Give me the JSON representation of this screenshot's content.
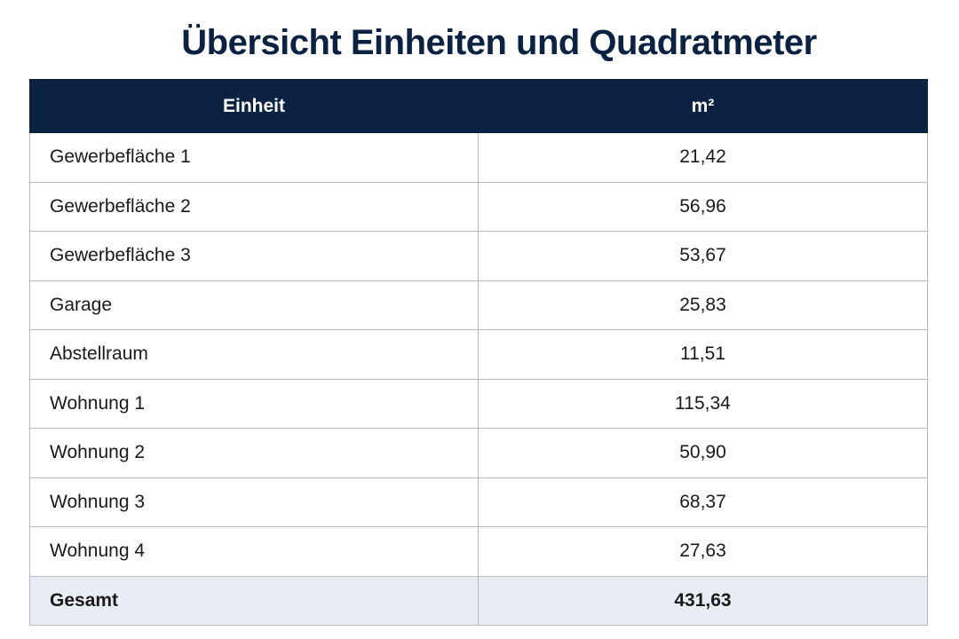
{
  "title": "Übersicht Einheiten und Quadratmeter",
  "table": {
    "headers": [
      "Einheit",
      "m²"
    ],
    "rows": [
      {
        "unit": "Gewerbefläche 1",
        "area": "21,42"
      },
      {
        "unit": "Gewerbefläche 2",
        "area": "56,96"
      },
      {
        "unit": "Gewerbefläche 3",
        "area": "53,67"
      },
      {
        "unit": "Garage",
        "area": "25,83"
      },
      {
        "unit": "Abstellraum",
        "area": "11,51"
      },
      {
        "unit": "Wohnung 1",
        "area": "115,34"
      },
      {
        "unit": "Wohnung 2",
        "area": "50,90"
      },
      {
        "unit": "Wohnung 3",
        "area": "68,37"
      },
      {
        "unit": "Wohnung 4",
        "area": "27,63"
      }
    ],
    "total": {
      "unit": "Gesamt",
      "area": "431,63"
    }
  },
  "colors": {
    "header_bg": "#0b2242",
    "title": "#0b2242",
    "total_bg": "#e9ecf2",
    "grid": "#b8bcc4"
  }
}
